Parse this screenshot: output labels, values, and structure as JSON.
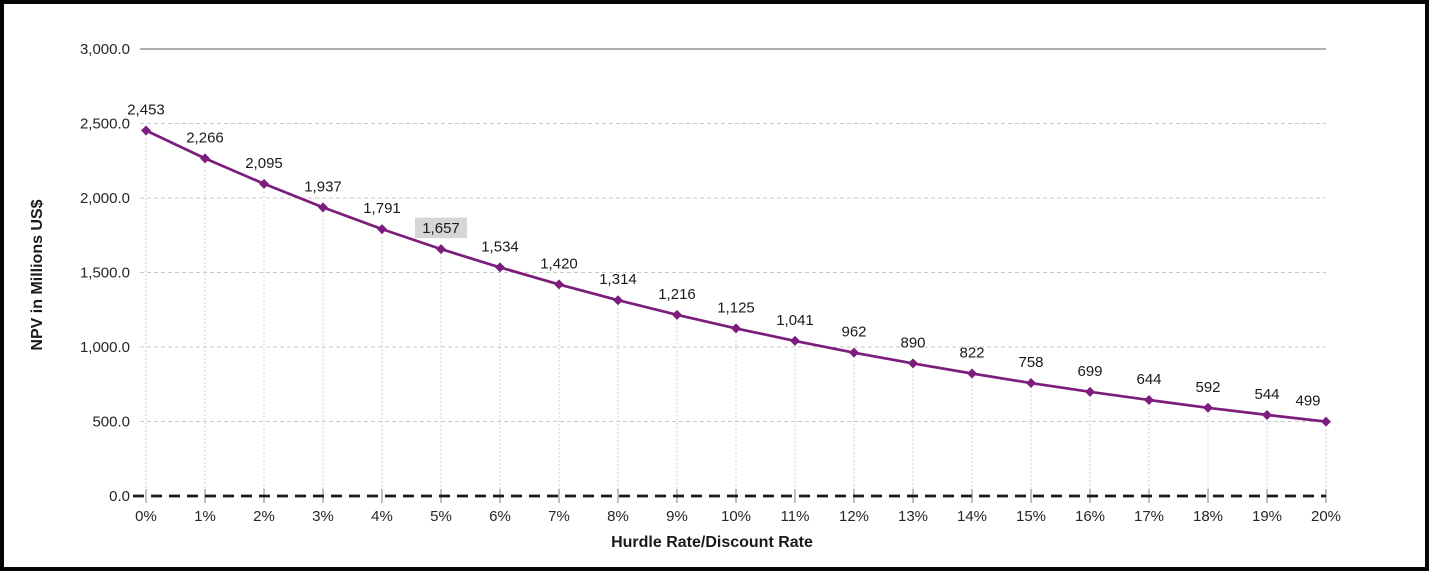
{
  "chart_data": {
    "type": "line",
    "title": "",
    "xlabel": "Hurdle Rate/Discount Rate",
    "ylabel": "NPV in Millions US$",
    "categories": [
      "0%",
      "1%",
      "2%",
      "3%",
      "4%",
      "5%",
      "6%",
      "7%",
      "8%",
      "9%",
      "10%",
      "11%",
      "12%",
      "13%",
      "14%",
      "15%",
      "16%",
      "17%",
      "18%",
      "19%",
      "20%"
    ],
    "values": [
      2453,
      2266,
      2095,
      1937,
      1791,
      1657,
      1534,
      1420,
      1314,
      1216,
      1125,
      1041,
      962,
      890,
      822,
      758,
      699,
      644,
      592,
      544,
      499
    ],
    "data_labels": [
      "2,453",
      "2,266",
      "2,095",
      "1,937",
      "1,791",
      "1,657",
      "1,534",
      "1,420",
      "1,314",
      "1,216",
      "1,125",
      "1,041",
      "962",
      "890",
      "822",
      "758",
      "699",
      "644",
      "592",
      "544",
      "499"
    ],
    "highlighted_label": {
      "index": 5,
      "text": "1,657",
      "background": "#d6d6d6"
    },
    "ylim": [
      0,
      3000
    ],
    "ytick_interval": 500,
    "ytick_labels": [
      "0.0",
      "500.0",
      "1,000.0",
      "1,500.0",
      "2,000.0",
      "2,500.0",
      "3,000.0"
    ],
    "legend": "none",
    "grid": {
      "horizontal": "dashed",
      "vertical_droplines": "dotted",
      "zero_line": "black-dashed",
      "top_line": "solid"
    },
    "colors": {
      "line": "#7C1D7E",
      "marker": "#7C1D7E",
      "gridline": "#c8c8c8",
      "dropline": "#c6c6c6",
      "zero_line": "#1a1a1a",
      "top_line": "#808080",
      "tick": "#808080",
      "label_text": "#1a1a1a",
      "axis_text": "#262626"
    }
  }
}
